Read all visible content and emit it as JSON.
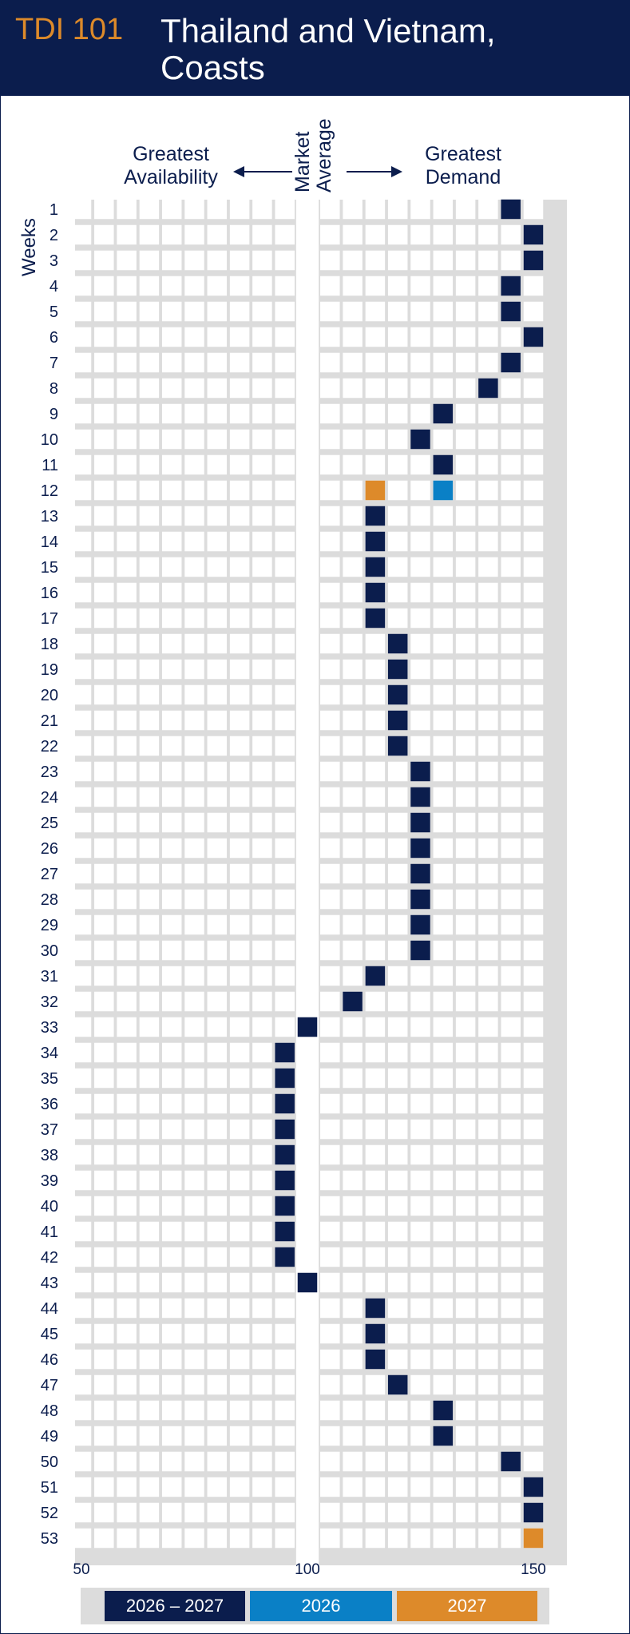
{
  "header": {
    "code": "TDI 101",
    "title": "Thailand and Vietnam, Coasts"
  },
  "labels": {
    "left_line1": "Greatest",
    "left_line2": "Availability",
    "right_line1": "Greatest",
    "right_line2": "Demand",
    "market_line1": "Market",
    "market_line2": "Average",
    "weeks": "Weeks"
  },
  "legend": [
    {
      "label": "2026 – 2027",
      "color": "#0b1d4d"
    },
    {
      "label": "2026",
      "color": "#0a80c6"
    },
    {
      "label": "2027",
      "color": "#dd8a2a"
    }
  ],
  "colors": {
    "grid_bg": "#dcdcdc",
    "cell": "#ffffff",
    "navy": "#0b1d4d",
    "blue": "#0a80c6",
    "orange": "#dd8a2a"
  },
  "chart_data": {
    "type": "scatter",
    "title": "Thailand and Vietnam, Coasts",
    "ylabel": "Weeks",
    "xlim": [
      50,
      150
    ],
    "x_ticks": [
      "50",
      "100",
      "150"
    ],
    "series": [
      {
        "name": "2026 – 2027",
        "points": [
          {
            "week": 1,
            "x": 145
          },
          {
            "week": 2,
            "x": 150
          },
          {
            "week": 3,
            "x": 150
          },
          {
            "week": 4,
            "x": 145
          },
          {
            "week": 5,
            "x": 145
          },
          {
            "week": 6,
            "x": 150
          },
          {
            "week": 7,
            "x": 145
          },
          {
            "week": 8,
            "x": 140
          },
          {
            "week": 9,
            "x": 130
          },
          {
            "week": 10,
            "x": 125
          },
          {
            "week": 11,
            "x": 130
          },
          {
            "week": 13,
            "x": 115
          },
          {
            "week": 14,
            "x": 115
          },
          {
            "week": 15,
            "x": 115
          },
          {
            "week": 16,
            "x": 115
          },
          {
            "week": 17,
            "x": 115
          },
          {
            "week": 18,
            "x": 120
          },
          {
            "week": 19,
            "x": 120
          },
          {
            "week": 20,
            "x": 120
          },
          {
            "week": 21,
            "x": 120
          },
          {
            "week": 22,
            "x": 120
          },
          {
            "week": 23,
            "x": 125
          },
          {
            "week": 24,
            "x": 125
          },
          {
            "week": 25,
            "x": 125
          },
          {
            "week": 26,
            "x": 125
          },
          {
            "week": 27,
            "x": 125
          },
          {
            "week": 28,
            "x": 125
          },
          {
            "week": 29,
            "x": 125
          },
          {
            "week": 30,
            "x": 125
          },
          {
            "week": 31,
            "x": 115
          },
          {
            "week": 32,
            "x": 110
          },
          {
            "week": 33,
            "x": 100
          },
          {
            "week": 34,
            "x": 95
          },
          {
            "week": 35,
            "x": 95
          },
          {
            "week": 36,
            "x": 95
          },
          {
            "week": 37,
            "x": 95
          },
          {
            "week": 38,
            "x": 95
          },
          {
            "week": 39,
            "x": 95
          },
          {
            "week": 40,
            "x": 95
          },
          {
            "week": 41,
            "x": 95
          },
          {
            "week": 42,
            "x": 95
          },
          {
            "week": 43,
            "x": 100
          },
          {
            "week": 44,
            "x": 115
          },
          {
            "week": 45,
            "x": 115
          },
          {
            "week": 46,
            "x": 115
          },
          {
            "week": 47,
            "x": 120
          },
          {
            "week": 48,
            "x": 130
          },
          {
            "week": 49,
            "x": 130
          },
          {
            "week": 50,
            "x": 145
          },
          {
            "week": 51,
            "x": 150
          },
          {
            "week": 52,
            "x": 150
          }
        ]
      },
      {
        "name": "2026",
        "points": [
          {
            "week": 12,
            "x": 130
          }
        ]
      },
      {
        "name": "2027",
        "points": [
          {
            "week": 12,
            "x": 115
          },
          {
            "week": 53,
            "x": 150
          }
        ]
      }
    ],
    "weeks": [
      "1",
      "2",
      "3",
      "4",
      "5",
      "6",
      "7",
      "8",
      "9",
      "10",
      "11",
      "12",
      "13",
      "14",
      "15",
      "16",
      "17",
      "18",
      "19",
      "20",
      "21",
      "22",
      "23",
      "24",
      "25",
      "26",
      "27",
      "28",
      "29",
      "30",
      "31",
      "32",
      "33",
      "34",
      "35",
      "36",
      "37",
      "38",
      "39",
      "40",
      "41",
      "42",
      "43",
      "44",
      "45",
      "46",
      "47",
      "48",
      "49",
      "50",
      "51",
      "52",
      "53"
    ]
  }
}
